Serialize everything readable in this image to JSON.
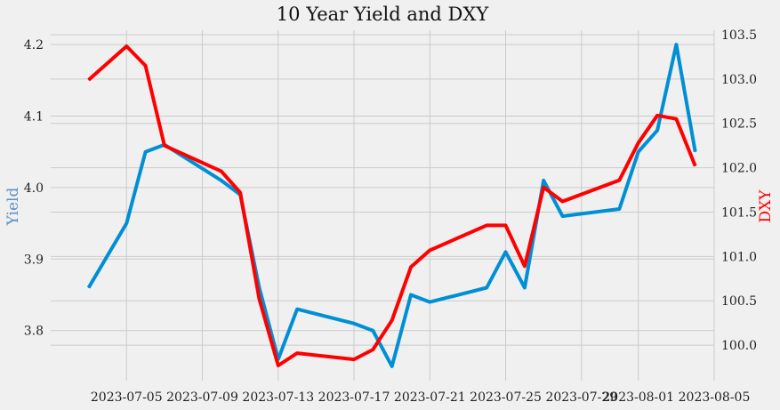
{
  "chart_data": {
    "type": "line",
    "title": "10 Year Yield and DXY",
    "xlabel": "",
    "x_ticks": [
      "2023-07-05",
      "2023-07-09",
      "2023-07-13",
      "2023-07-17",
      "2023-07-21",
      "2023-07-25",
      "2023-07-29",
      "2023-08-01",
      "2023-08-05"
    ],
    "x_range": [
      "2023-07-01",
      "2023-08-05"
    ],
    "grid": true,
    "y_left": {
      "label": "Yield",
      "color": "#5a8fc2",
      "range": [
        3.73,
        4.22
      ],
      "ticks": [
        3.8,
        3.9,
        4.0,
        4.1,
        4.2
      ]
    },
    "y_right": {
      "label": "DXY",
      "color": "#ff0000",
      "range": [
        99.6,
        103.55
      ],
      "ticks": [
        100.0,
        100.5,
        101.0,
        101.5,
        102.0,
        102.5,
        103.0,
        103.5
      ]
    },
    "series": [
      {
        "axis": "left",
        "color": "#008fd5",
        "points": [
          {
            "x": "2023-07-03",
            "y": 3.86
          },
          {
            "x": "2023-07-05",
            "y": 3.95
          },
          {
            "x": "2023-07-06",
            "y": 4.05
          },
          {
            "x": "2023-07-07",
            "y": 4.06
          },
          {
            "x": "2023-07-10",
            "y": 4.01
          },
          {
            "x": "2023-07-11",
            "y": 3.99
          },
          {
            "x": "2023-07-12",
            "y": 3.86
          },
          {
            "x": "2023-07-13",
            "y": 3.76
          },
          {
            "x": "2023-07-14",
            "y": 3.83
          },
          {
            "x": "2023-07-17",
            "y": 3.81
          },
          {
            "x": "2023-07-18",
            "y": 3.8
          },
          {
            "x": "2023-07-19",
            "y": 3.75
          },
          {
            "x": "2023-07-20",
            "y": 3.85
          },
          {
            "x": "2023-07-21",
            "y": 3.84
          },
          {
            "x": "2023-07-24",
            "y": 3.86
          },
          {
            "x": "2023-07-25",
            "y": 3.91
          },
          {
            "x": "2023-07-26",
            "y": 3.86
          },
          {
            "x": "2023-07-27",
            "y": 4.01
          },
          {
            "x": "2023-07-28",
            "y": 3.96
          },
          {
            "x": "2023-07-31",
            "y": 3.97
          },
          {
            "x": "2023-08-01",
            "y": 4.05
          },
          {
            "x": "2023-08-02",
            "y": 4.08
          },
          {
            "x": "2023-08-03",
            "y": 4.2
          },
          {
            "x": "2023-08-04",
            "y": 4.05
          }
        ]
      },
      {
        "axis": "right",
        "color": "#ff0000",
        "points": [
          {
            "x": "2023-07-03",
            "y": 102.99
          },
          {
            "x": "2023-07-05",
            "y": 103.37
          },
          {
            "x": "2023-07-06",
            "y": 103.15
          },
          {
            "x": "2023-07-07",
            "y": 102.25
          },
          {
            "x": "2023-07-10",
            "y": 101.96
          },
          {
            "x": "2023-07-11",
            "y": 101.72
          },
          {
            "x": "2023-07-12",
            "y": 100.52
          },
          {
            "x": "2023-07-13",
            "y": 99.77
          },
          {
            "x": "2023-07-14",
            "y": 99.91
          },
          {
            "x": "2023-07-17",
            "y": 99.84
          },
          {
            "x": "2023-07-18",
            "y": 99.95
          },
          {
            "x": "2023-07-19",
            "y": 100.28
          },
          {
            "x": "2023-07-20",
            "y": 100.88
          },
          {
            "x": "2023-07-21",
            "y": 101.07
          },
          {
            "x": "2023-07-24",
            "y": 101.35
          },
          {
            "x": "2023-07-25",
            "y": 101.35
          },
          {
            "x": "2023-07-26",
            "y": 100.89
          },
          {
            "x": "2023-07-27",
            "y": 101.78
          },
          {
            "x": "2023-07-28",
            "y": 101.62
          },
          {
            "x": "2023-07-31",
            "y": 101.86
          },
          {
            "x": "2023-08-01",
            "y": 102.28
          },
          {
            "x": "2023-08-02",
            "y": 102.59
          },
          {
            "x": "2023-08-03",
            "y": 102.55
          },
          {
            "x": "2023-08-04",
            "y": 102.02
          }
        ]
      }
    ]
  }
}
